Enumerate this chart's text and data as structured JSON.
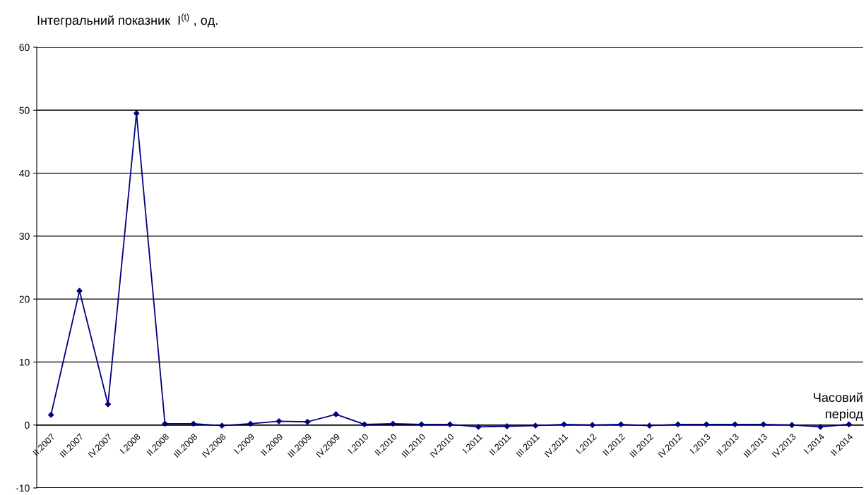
{
  "chart_data": {
    "type": "line",
    "ylabel": "Інтегральний показник  I$^{(t)}$ , од.",
    "xlabel": "Часовий\nперіод",
    "categories": [
      "II.2007",
      "III.2007",
      "IV.2007",
      "I.2008",
      "II.2008",
      "III.2008",
      "IV.2008",
      "I.2009",
      "II.2009",
      "III.2009",
      "IV.2009",
      "I.2010",
      "II.2010",
      "III.2010",
      "IV.2010",
      "I.2011",
      "II.2011",
      "III.2011",
      "IV.2011",
      "I.2012",
      "II.2012",
      "III.2012",
      "IV.2012",
      "I.2013",
      "II.2013",
      "III.2013",
      "IV.2013",
      "I.2014",
      "II.2014"
    ],
    "series": [
      {
        "color": "#000080",
        "values": [
          1.6,
          21.3,
          3.3,
          49.5,
          0.2,
          0.2,
          -0.1,
          0.2,
          0.6,
          0.5,
          1.7,
          0.1,
          0.2,
          0.1,
          0.1,
          -0.3,
          -0.2,
          -0.1,
          0.1,
          0,
          0.1,
          -0.1,
          0.1,
          0.1,
          0.1,
          0.1,
          0,
          -0.3,
          0.1
        ]
      }
    ],
    "ylim": [
      -10,
      60
    ],
    "yticks": [
      -10,
      0,
      10,
      20,
      30,
      40,
      50,
      60
    ],
    "grid": "y",
    "marker": "diamond",
    "line_style": "solid"
  }
}
